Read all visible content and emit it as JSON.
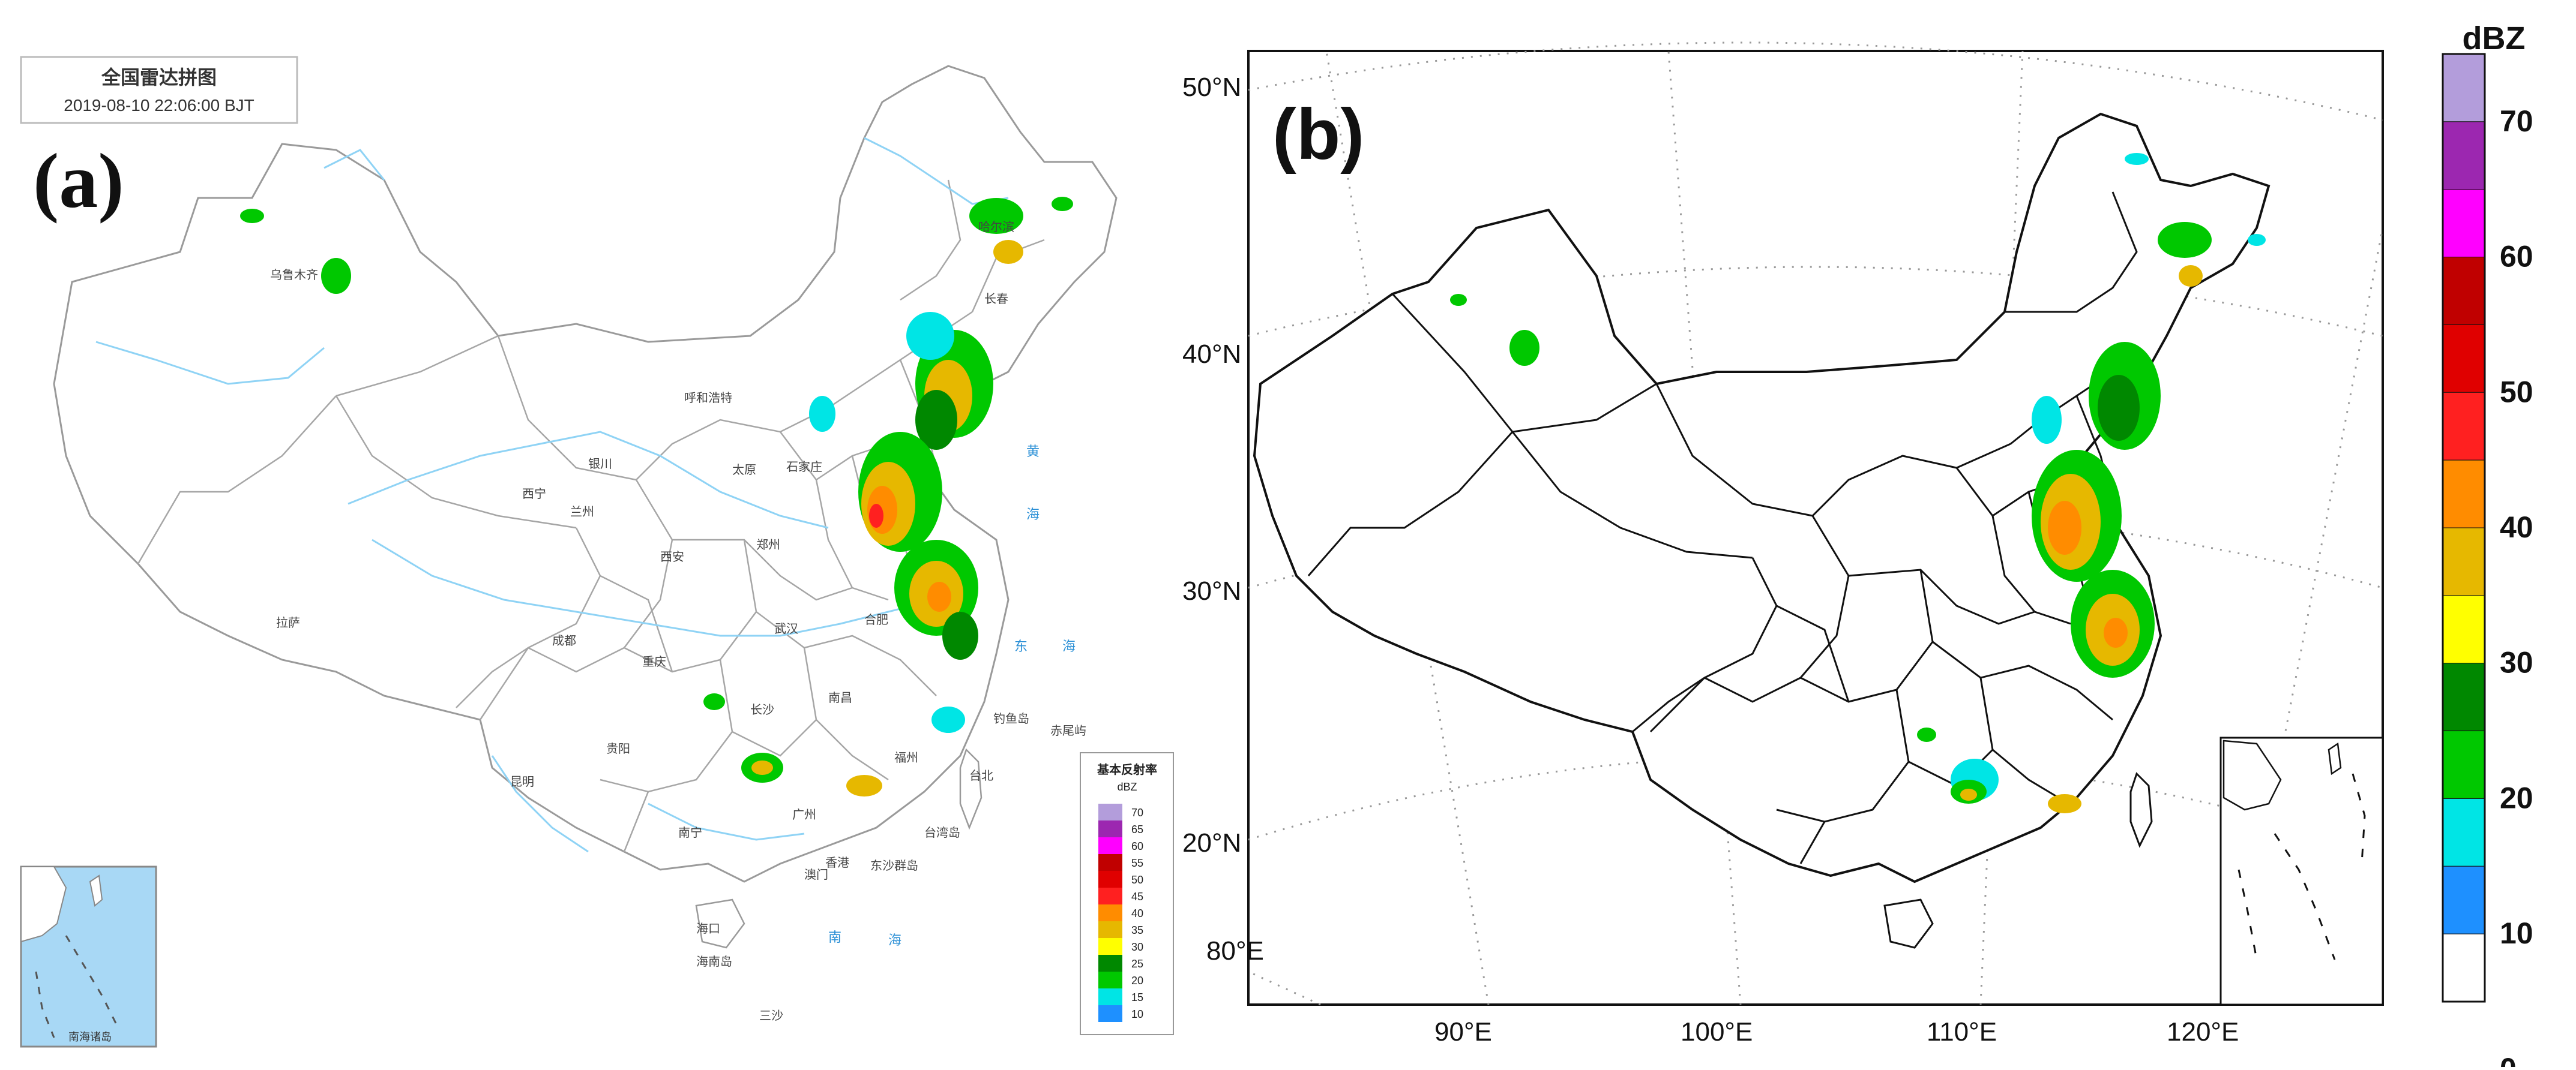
{
  "panel_a": {
    "label": "(a)",
    "title": "全国雷达拼图",
    "timestamp": "2019-08-10 22:06:00 BJT",
    "cities": [
      {
        "name": "乌鲁木齐"
      },
      {
        "name": "哈尔滨"
      },
      {
        "name": "长春"
      },
      {
        "name": "呼和浩特"
      },
      {
        "name": "银川"
      },
      {
        "name": "太原"
      },
      {
        "name": "石家庄"
      },
      {
        "name": "西宁"
      },
      {
        "name": "兰州"
      },
      {
        "name": "郑州"
      },
      {
        "name": "西安"
      },
      {
        "name": "拉萨"
      },
      {
        "name": "成都"
      },
      {
        "name": "重庆"
      },
      {
        "name": "武汉"
      },
      {
        "name": "合肥"
      },
      {
        "name": "长沙"
      },
      {
        "name": "南昌"
      },
      {
        "name": "贵阳"
      },
      {
        "name": "昆明"
      },
      {
        "name": "福州"
      },
      {
        "name": "南宁"
      },
      {
        "name": "广州"
      },
      {
        "name": "香港"
      },
      {
        "name": "澳门"
      },
      {
        "name": "海口"
      },
      {
        "name": "台北"
      },
      {
        "name": "钓鱼岛"
      },
      {
        "name": "赤尾屿"
      },
      {
        "name": "台湾岛"
      },
      {
        "name": "东沙群岛"
      },
      {
        "name": "海南岛"
      },
      {
        "name": "三沙"
      },
      {
        "name": "南海诸岛"
      }
    ],
    "seas": [
      {
        "name": "黄"
      },
      {
        "name": "海"
      },
      {
        "name": "东"
      },
      {
        "name": "海"
      },
      {
        "name": "南"
      },
      {
        "name": "海"
      }
    ],
    "legend": {
      "title": "基本反射率",
      "unit": "dBZ",
      "levels": [
        {
          "value": "70",
          "color": "#b39ddb"
        },
        {
          "value": "65",
          "color": "#9c27b0"
        },
        {
          "value": "60",
          "color": "#ff00ff"
        },
        {
          "value": "55",
          "color": "#c00000"
        },
        {
          "value": "50",
          "color": "#e00000"
        },
        {
          "value": "45",
          "color": "#ff2020"
        },
        {
          "value": "40",
          "color": "#ff8c00"
        },
        {
          "value": "35",
          "color": "#e6b800"
        },
        {
          "value": "30",
          "color": "#ffff00"
        },
        {
          "value": "25",
          "color": "#008800"
        },
        {
          "value": "20",
          "color": "#00c800"
        },
        {
          "value": "15",
          "color": "#00e5e5"
        },
        {
          "value": "10",
          "color": "#1e90ff"
        }
      ]
    }
  },
  "panel_b": {
    "label": "(b)",
    "lat_labels": [
      "50°N",
      "40°N",
      "30°N",
      "20°N"
    ],
    "lon_labels": [
      "80°E",
      "90°E",
      "100°E",
      "110°E",
      "120°E"
    ],
    "colorbar": {
      "unit": "dBZ",
      "tick_labels": [
        "70",
        "60",
        "50",
        "40",
        "30",
        "20",
        "10",
        "0"
      ],
      "colors": [
        "#b39ddb",
        "#9c27b0",
        "#ff00ff",
        "#c00000",
        "#e00000",
        "#ff2020",
        "#ff8c00",
        "#e6b800",
        "#ffff00",
        "#008800",
        "#00c800",
        "#00e5e5",
        "#1e90ff",
        "#ffffff"
      ]
    }
  },
  "colors": {
    "land_fill_a": "#ffffff",
    "boundary_a": "#9a9a9a",
    "river": "#8fd3f5",
    "inset_sea": "#a8d8f5",
    "boundary_b": "#111111",
    "graticule": "#999999"
  }
}
